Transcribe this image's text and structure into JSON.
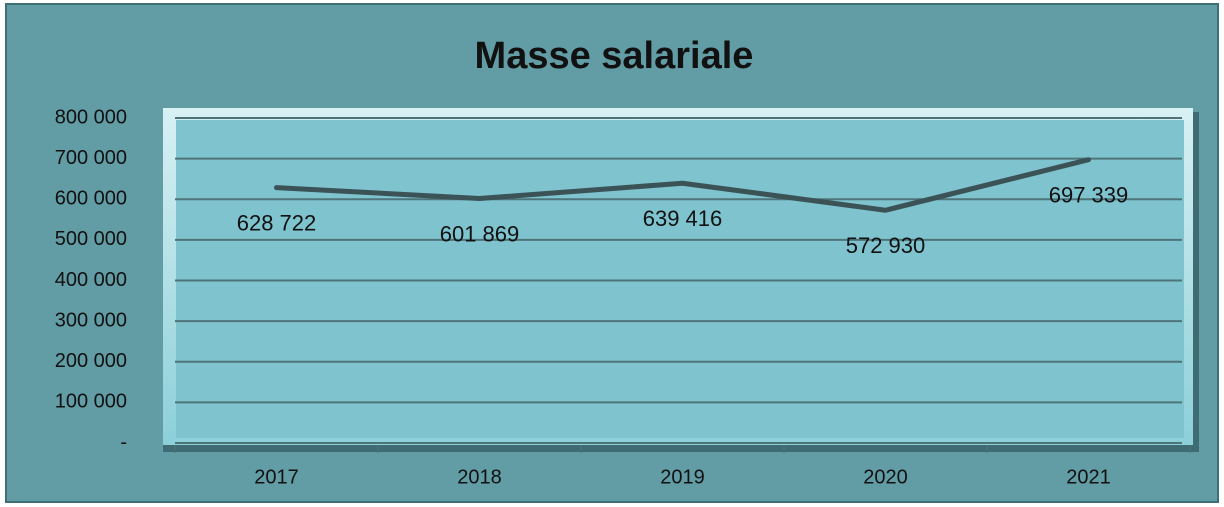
{
  "chart_data": {
    "type": "line",
    "title": "Masse salariale",
    "categories": [
      "2017",
      "2018",
      "2019",
      "2020",
      "2021"
    ],
    "series": [
      {
        "name": "Masse salariale",
        "color": "#3b5356",
        "values": [
          628722,
          601869,
          639416,
          572930,
          697339
        ],
        "value_labels": [
          "628 722",
          "601 869",
          "639 416",
          "572 930",
          "697 339"
        ]
      }
    ],
    "ylim": [
      0,
      800000
    ],
    "yticks": [
      {
        "value": 0,
        "label": "-"
      },
      {
        "value": 100000,
        "label": "100 000"
      },
      {
        "value": 200000,
        "label": "200 000"
      },
      {
        "value": 300000,
        "label": "300 000"
      },
      {
        "value": 400000,
        "label": "400 000"
      },
      {
        "value": 500000,
        "label": "500 000"
      },
      {
        "value": 600000,
        "label": "600 000"
      },
      {
        "value": 700000,
        "label": "700 000"
      },
      {
        "value": 800000,
        "label": "800 000"
      }
    ],
    "grid": true
  }
}
